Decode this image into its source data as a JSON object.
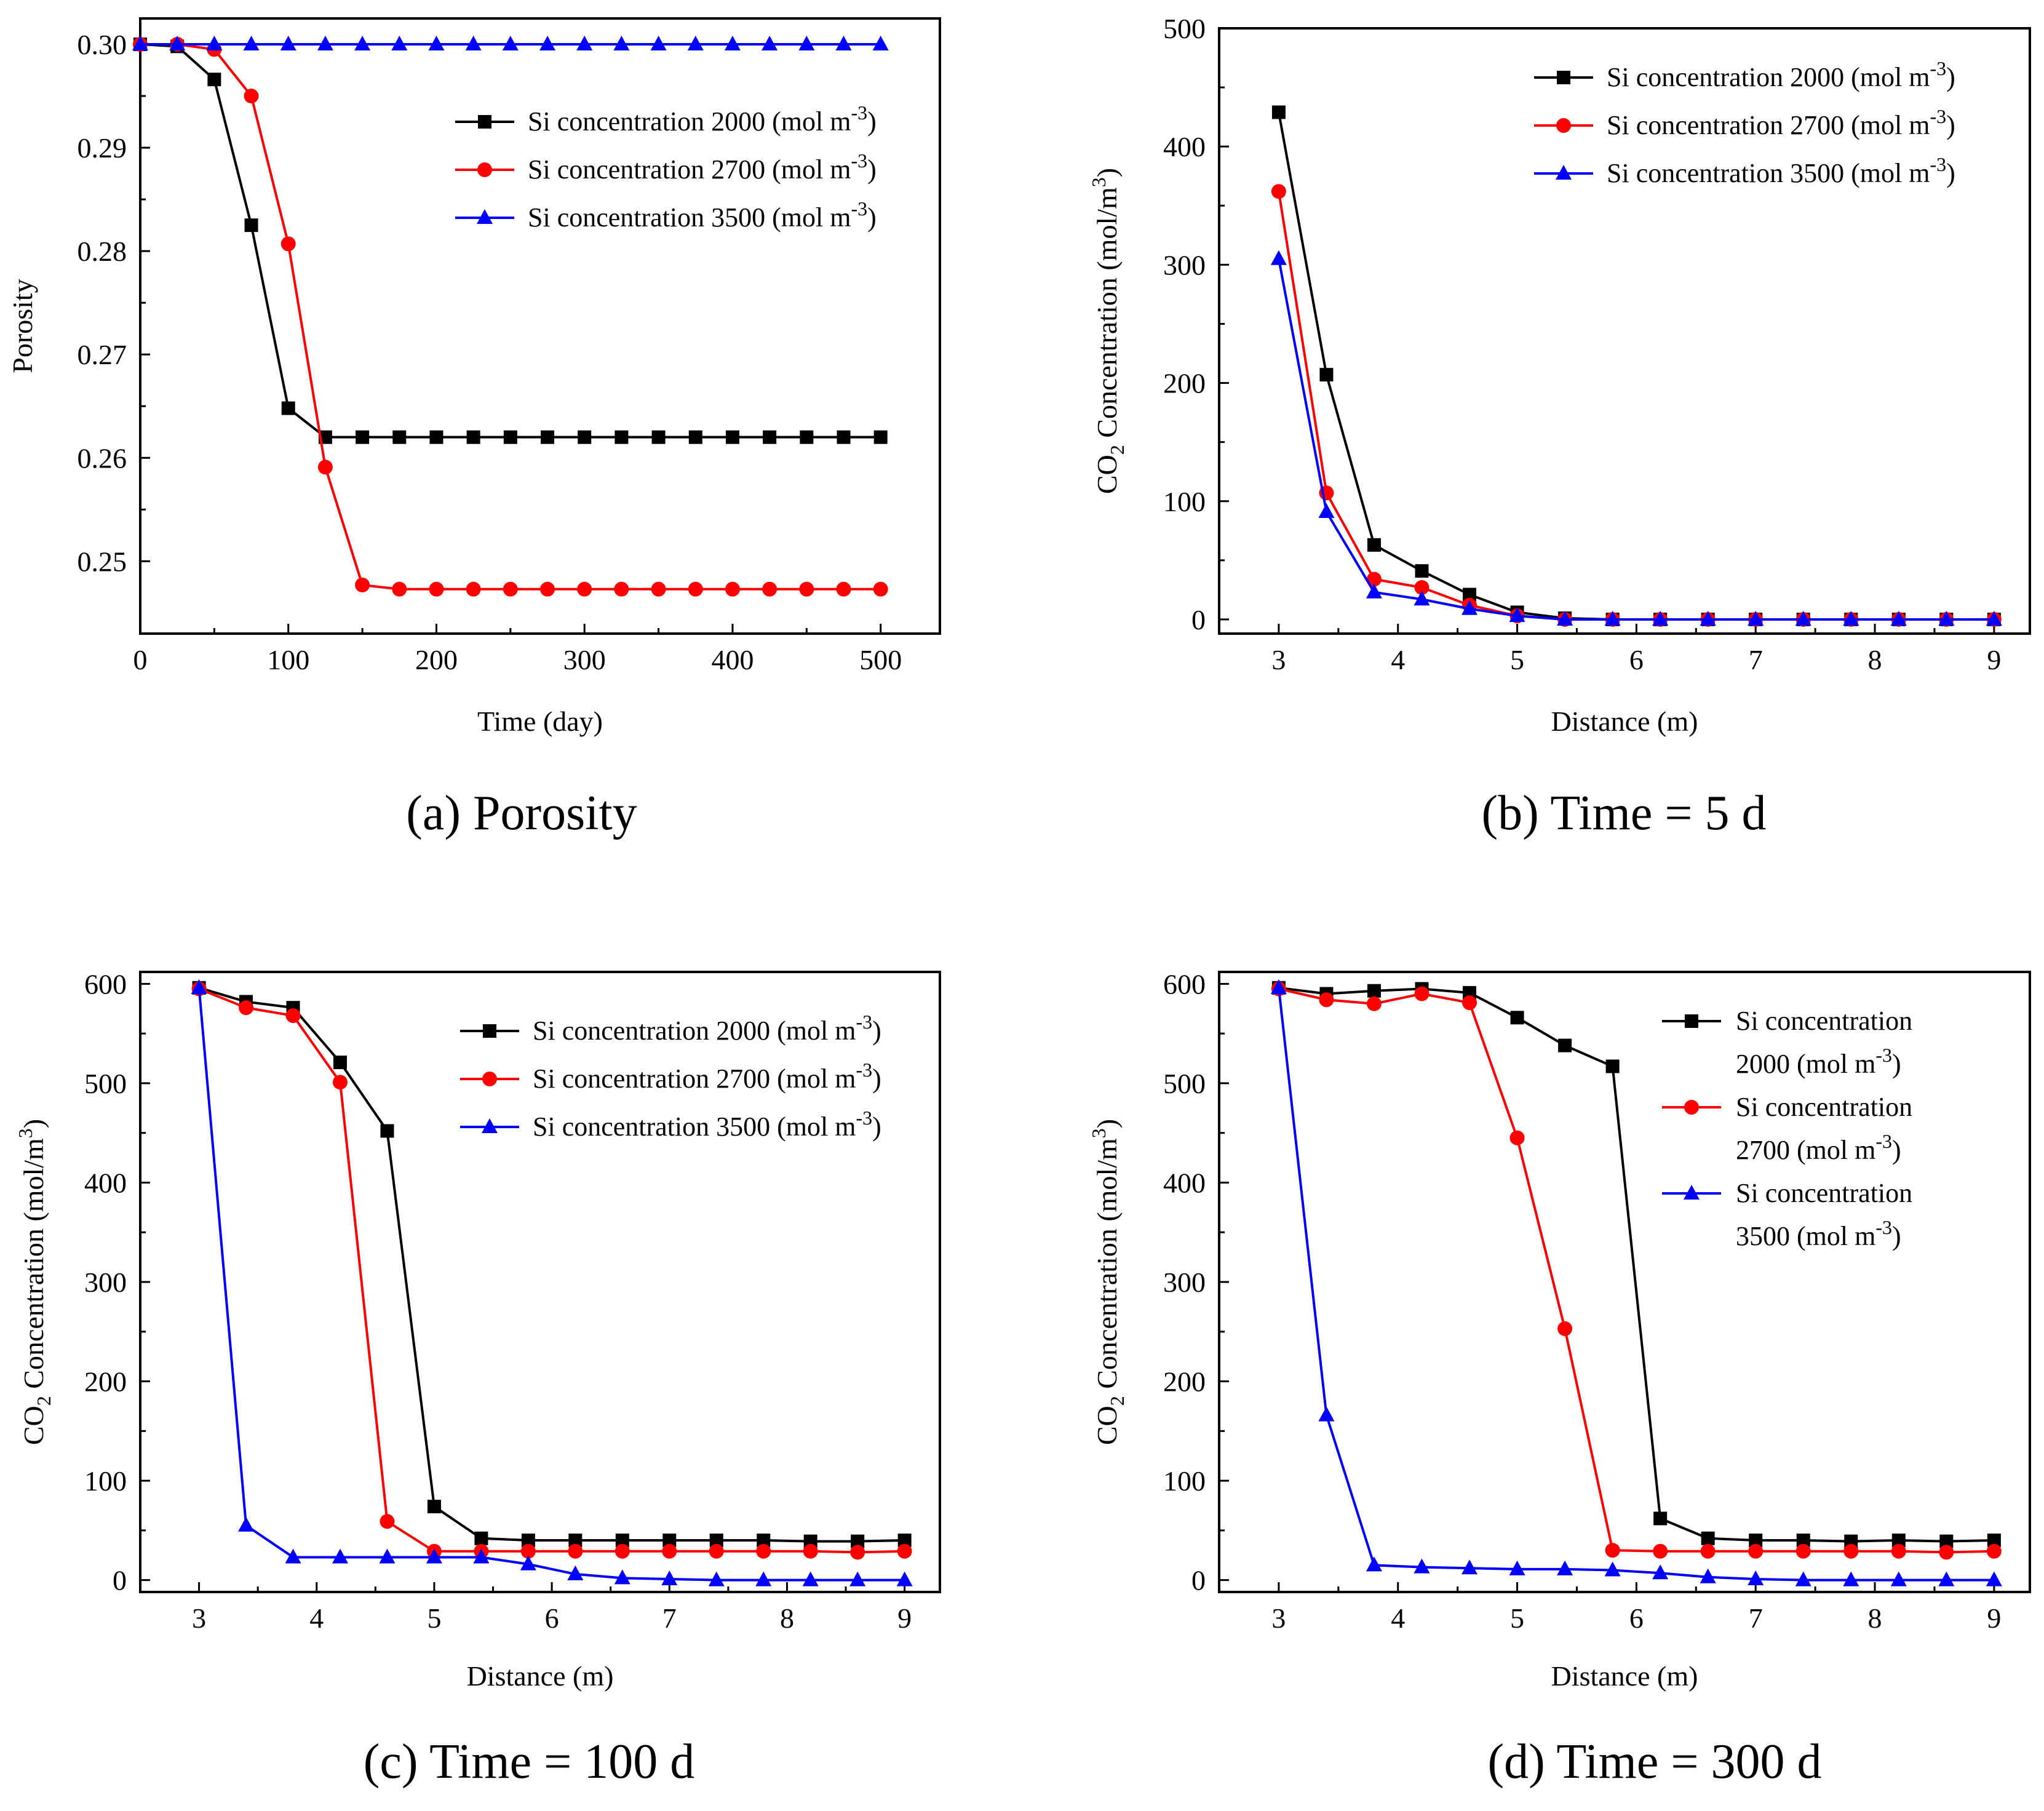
{
  "colors": {
    "black": "#000000",
    "red": "#ff0000",
    "blue": "#0000ff"
  },
  "legend_labels": {
    "s2000": "Si concentration 2000 (mol m",
    "s2700": "Si concentration 2700 (mol m",
    "s3500": "Si concentration 3500 (mol m",
    "exponent": "-3",
    "close": ")",
    "wrap_first": "Si concentration",
    "wrap_2000": "2000 (mol m",
    "wrap_2700": "2700 (mol m",
    "wrap_3500": "3500 (mol m"
  },
  "chart_data": [
    {
      "id": "a",
      "type": "line",
      "caption": "(a) Porosity",
      "xlabel": "Time (day)",
      "ylabel": "Porosity",
      "xlim": [
        0,
        540
      ],
      "ylim": [
        0.243,
        0.3025
      ],
      "xticks": [
        "0",
        "100",
        "200",
        "300",
        "400",
        "500"
      ],
      "yticks": [
        "0.25",
        "0.26",
        "0.27",
        "0.28",
        "0.29",
        "0.30"
      ],
      "x": [
        0,
        25,
        50,
        75,
        100,
        125,
        150,
        175,
        200,
        225,
        250,
        275,
        300,
        325,
        350,
        375,
        400,
        425,
        450,
        475,
        500
      ],
      "series": [
        {
          "name": "Si concentration 2000 (mol m-3)",
          "color": "#000000",
          "marker": "square",
          "values": [
            0.3,
            0.2998,
            0.2966,
            0.2825,
            0.2648,
            0.262,
            0.262,
            0.262,
            0.262,
            0.262,
            0.262,
            0.262,
            0.262,
            0.262,
            0.262,
            0.262,
            0.262,
            0.262,
            0.262,
            0.262,
            0.262
          ]
        },
        {
          "name": "Si concentration 2700 (mol m-3)",
          "color": "#ff0000",
          "marker": "circle",
          "values": [
            0.3,
            0.3,
            0.2995,
            0.295,
            0.2807,
            0.2591,
            0.2477,
            0.2473,
            0.2473,
            0.2473,
            0.2473,
            0.2473,
            0.2473,
            0.2473,
            0.2473,
            0.2473,
            0.2473,
            0.2473,
            0.2473,
            0.2473,
            0.2473
          ]
        },
        {
          "name": "Si concentration 3500 (mol m-3)",
          "color": "#0000ff",
          "marker": "triangle",
          "values": [
            0.3,
            0.3,
            0.3,
            0.3,
            0.3,
            0.3,
            0.3,
            0.3,
            0.3,
            0.3,
            0.3,
            0.3,
            0.3,
            0.3,
            0.3,
            0.3,
            0.3,
            0.3,
            0.3,
            0.3,
            0.3
          ]
        }
      ],
      "legend": "right-middle"
    },
    {
      "id": "b",
      "type": "line",
      "caption": "(b) Time = 5 d",
      "xlabel": "Distance (m)",
      "ylabel": "Concentration (mol/m",
      "ylabel_prefix": "CO",
      "ylabel_sub": "2",
      "ylabel_sup": "3",
      "ylabel_close": ")",
      "xlim": [
        2.5,
        9.3
      ],
      "ylim": [
        -12,
        500
      ],
      "xticks": [
        "3",
        "4",
        "5",
        "6",
        "7",
        "8",
        "9"
      ],
      "yticks": [
        "0",
        "100",
        "200",
        "300",
        "400",
        "500"
      ],
      "x": [
        3,
        3.4,
        3.8,
        4.2,
        4.6,
        5.0,
        5.4,
        5.8,
        6.2,
        6.6,
        7.0,
        7.4,
        7.8,
        8.2,
        8.6,
        9.0
      ],
      "series": [
        {
          "name": "Si concentration 2000 (mol m-3)",
          "color": "#000000",
          "marker": "square",
          "values": [
            429,
            207,
            63,
            41,
            21,
            6,
            1,
            0,
            0,
            0,
            0,
            0,
            0,
            0,
            0,
            0
          ]
        },
        {
          "name": "Si concentration 2700 (mol m-3)",
          "color": "#ff0000",
          "marker": "circle",
          "values": [
            362,
            107,
            34,
            27,
            12,
            3,
            0,
            0,
            0,
            0,
            0,
            0,
            0,
            0,
            0,
            0
          ]
        },
        {
          "name": "Si concentration 3500 (mol m-3)",
          "color": "#0000ff",
          "marker": "triangle",
          "values": [
            305,
            91,
            23,
            17,
            9,
            3,
            0,
            0,
            0,
            0,
            0,
            0,
            0,
            0,
            0,
            0
          ]
        }
      ],
      "legend": "top-right"
    },
    {
      "id": "c",
      "type": "line",
      "caption": "(c) Time = 100 d",
      "xlabel": "Distance (m)",
      "ylabel": "Concentration (mol/m",
      "ylabel_prefix": "CO",
      "ylabel_sub": "2",
      "ylabel_sup": "3",
      "ylabel_close": ")",
      "xlim": [
        2.5,
        9.3
      ],
      "ylim": [
        -12,
        612
      ],
      "xticks": [
        "3",
        "4",
        "5",
        "6",
        "7",
        "8",
        "9"
      ],
      "yticks": [
        "0",
        "100",
        "200",
        "300",
        "400",
        "500",
        "600"
      ],
      "x": [
        3,
        3.4,
        3.8,
        4.2,
        4.6,
        5.0,
        5.4,
        5.8,
        6.2,
        6.6,
        7.0,
        7.4,
        7.8,
        8.2,
        8.6,
        9.0
      ],
      "series": [
        {
          "name": "Si concentration 2000 (mol m-3)",
          "color": "#000000",
          "marker": "square",
          "values": [
            596,
            582,
            576,
            521,
            452,
            74,
            42,
            40,
            40,
            40,
            40,
            40,
            40,
            39,
            39,
            40
          ]
        },
        {
          "name": "Si concentration 2700 (mol m-3)",
          "color": "#ff0000",
          "marker": "circle",
          "values": [
            595,
            576,
            568,
            501,
            59,
            29,
            29,
            29,
            29,
            29,
            29,
            29,
            29,
            29,
            28,
            29
          ]
        },
        {
          "name": "Si concentration 3500 (mol m-3)",
          "color": "#0000ff",
          "marker": "triangle",
          "values": [
            596,
            55,
            23,
            23,
            23,
            23,
            23,
            16,
            6,
            2,
            1,
            0,
            0,
            0,
            0,
            0
          ]
        }
      ],
      "legend": "top-right"
    },
    {
      "id": "d",
      "type": "line",
      "caption": "(d) Time = 300 d",
      "xlabel": "Distance (m)",
      "ylabel": "Concentration (mol/m",
      "ylabel_prefix": "CO",
      "ylabel_sub": "2",
      "ylabel_sup": "3",
      "ylabel_close": ")",
      "xlim": [
        2.5,
        9.3
      ],
      "ylim": [
        -12,
        612
      ],
      "xticks": [
        "3",
        "4",
        "5",
        "6",
        "7",
        "8",
        "9"
      ],
      "yticks": [
        "0",
        "100",
        "200",
        "300",
        "400",
        "500",
        "600"
      ],
      "x": [
        3,
        3.4,
        3.8,
        4.2,
        4.6,
        5.0,
        5.4,
        5.8,
        6.2,
        6.6,
        7.0,
        7.4,
        7.8,
        8.2,
        8.6,
        9.0
      ],
      "series": [
        {
          "name": "Si concentration 2000 (mol m-3)",
          "color": "#000000",
          "marker": "square",
          "values": [
            596,
            590,
            593,
            595,
            591,
            566,
            538,
            517,
            62,
            42,
            40,
            40,
            39,
            40,
            39,
            40
          ]
        },
        {
          "name": "Si concentration 2700 (mol m-3)",
          "color": "#ff0000",
          "marker": "circle",
          "values": [
            595,
            584,
            580,
            590,
            581,
            445,
            253,
            30,
            29,
            29,
            29,
            29,
            29,
            29,
            28,
            29
          ]
        },
        {
          "name": "Si concentration 3500 (mol m-3)",
          "color": "#0000ff",
          "marker": "triangle",
          "values": [
            596,
            166,
            15,
            13,
            12,
            11,
            11,
            10,
            7,
            3,
            1,
            0,
            0,
            0,
            0,
            0
          ]
        }
      ],
      "legend": "top-right-wrapped"
    }
  ]
}
